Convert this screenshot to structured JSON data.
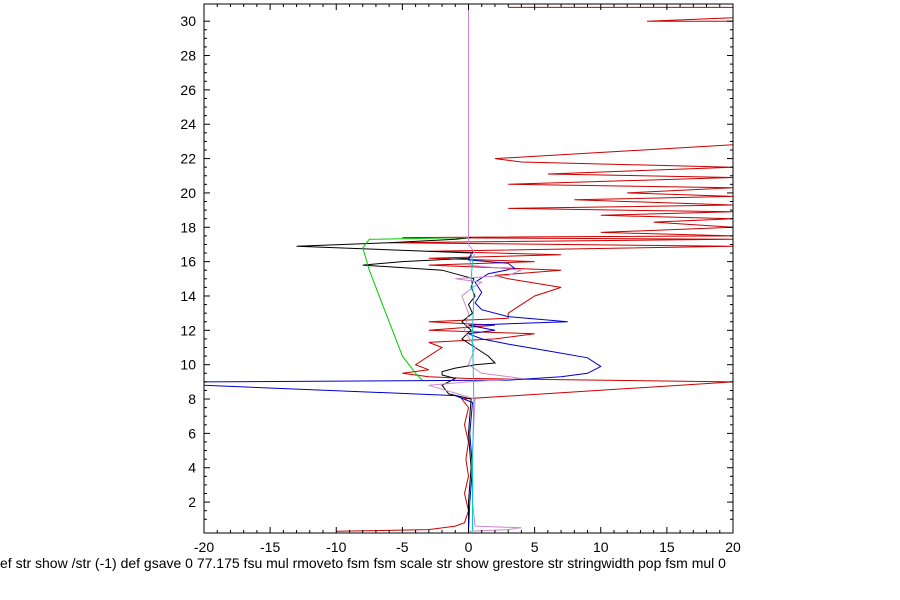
{
  "chart_data": {
    "type": "line",
    "title": "",
    "xlabel": "",
    "ylabel": "",
    "xlim": [
      -20,
      20
    ],
    "ylim": [
      0.2,
      31
    ],
    "grid": false,
    "legend": "none",
    "xticks": [
      -20,
      -15,
      -10,
      -5,
      0,
      5,
      10,
      15,
      20
    ],
    "yticks": [
      2,
      4,
      6,
      8,
      10,
      12,
      14,
      16,
      18,
      20,
      22,
      24,
      26,
      28,
      30
    ],
    "caption": "ef str show /str (-1) def gsave 0 77.175 fsu mul rmoveto fsm fsm scale str show grestore str stringwidth pop fsm mul 0",
    "series": [
      {
        "color": "#cc0000",
        "points": [
          [
            -10,
            0.3
          ],
          [
            -3,
            0.4
          ],
          [
            -1,
            0.6
          ],
          [
            -0.3,
            0.8
          ],
          [
            0,
            1.5
          ],
          [
            -0.3,
            2.5
          ],
          [
            0,
            3.5
          ],
          [
            -0.2,
            4.5
          ],
          [
            0,
            5.5
          ],
          [
            -0.3,
            6.5
          ],
          [
            0,
            7.5
          ],
          [
            -0.5,
            8
          ],
          [
            20,
            9
          ],
          [
            -0.2,
            9.2
          ],
          [
            -3,
            9.3
          ],
          [
            -5,
            9.5
          ],
          [
            -3,
            9.7
          ],
          [
            -4,
            10
          ],
          [
            -3,
            10.5
          ],
          [
            -2,
            11
          ],
          [
            -3,
            11.3
          ],
          [
            2,
            11.5
          ],
          [
            5,
            11.8
          ],
          [
            -3,
            12
          ],
          [
            2,
            12.3
          ],
          [
            -3,
            12.5
          ],
          [
            3,
            12.7
          ],
          [
            3,
            13
          ],
          [
            4,
            13.5
          ],
          [
            5,
            14
          ],
          [
            7,
            14.5
          ],
          [
            3,
            15
          ],
          [
            2,
            15.2
          ],
          [
            7,
            15.5
          ],
          [
            -3,
            15.8
          ],
          [
            5,
            16
          ],
          [
            -3,
            16.2
          ],
          [
            7,
            16.4
          ],
          [
            -3,
            16.6
          ],
          [
            20,
            16.9
          ],
          [
            -6,
            17.1
          ],
          [
            20,
            17.3
          ],
          [
            -5,
            17.4
          ],
          [
            20,
            17.5
          ],
          [
            10,
            17.7
          ],
          [
            20,
            18
          ],
          [
            14,
            18.3
          ],
          [
            20,
            18.5
          ],
          [
            10,
            18.7
          ],
          [
            20,
            18.9
          ],
          [
            3,
            19.1
          ],
          [
            20,
            19.3
          ],
          [
            8,
            19.6
          ],
          [
            20,
            19.8
          ],
          [
            12,
            20
          ],
          [
            20,
            20.3
          ],
          [
            3,
            20.5
          ],
          [
            20,
            20.9
          ],
          [
            6,
            21.1
          ],
          [
            20,
            21.5
          ],
          [
            4,
            21.8
          ],
          [
            2,
            22
          ],
          [
            20,
            22.8
          ],
          [
            20,
            30
          ],
          [
            13.5,
            30
          ],
          [
            20,
            30.2
          ],
          [
            20,
            30.8
          ],
          [
            3,
            30.8
          ]
        ]
      },
      {
        "color": "#000000",
        "points": [
          [
            0,
            0.3
          ],
          [
            0,
            2
          ],
          [
            0.2,
            4
          ],
          [
            0,
            6
          ],
          [
            0.2,
            8
          ],
          [
            -1.5,
            8.3
          ],
          [
            -2,
            8.8
          ],
          [
            -1,
            9.2
          ],
          [
            -2,
            9.4
          ],
          [
            -2,
            9.6
          ],
          [
            -1,
            9.8
          ],
          [
            0.5,
            10
          ],
          [
            2,
            10.1
          ],
          [
            1.5,
            10.5
          ],
          [
            0.5,
            11
          ],
          [
            -0.5,
            11.5
          ],
          [
            0.2,
            12
          ],
          [
            -0.5,
            12.5
          ],
          [
            0.3,
            13
          ],
          [
            0,
            13.5
          ],
          [
            0.5,
            14
          ],
          [
            0.2,
            14.5
          ],
          [
            0.4,
            15
          ],
          [
            -2,
            15.5
          ],
          [
            -8,
            15.8
          ],
          [
            -5,
            16
          ],
          [
            0,
            16.2
          ],
          [
            0.3,
            16.5
          ],
          [
            -13,
            16.9
          ],
          [
            -6,
            17.1
          ],
          [
            -1,
            17.3
          ],
          [
            0.2,
            17.4
          ]
        ]
      },
      {
        "color": "#0000cc",
        "points": [
          [
            0,
            0.3
          ],
          [
            0.1,
            2
          ],
          [
            0.3,
            4
          ],
          [
            0.1,
            6
          ],
          [
            0.3,
            7.8
          ],
          [
            -1,
            8.2
          ],
          [
            -20,
            8.8
          ],
          [
            -20,
            9
          ],
          [
            3,
            9.1
          ],
          [
            7,
            9.3
          ],
          [
            9,
            9.5
          ],
          [
            10,
            9.9
          ],
          [
            9,
            10.4
          ],
          [
            6,
            10.8
          ],
          [
            3,
            11.2
          ],
          [
            1,
            11.5
          ],
          [
            0,
            11.8
          ],
          [
            2,
            12
          ],
          [
            0,
            12.3
          ],
          [
            7.5,
            12.5
          ],
          [
            3,
            12.8
          ],
          [
            1,
            13.2
          ],
          [
            0.5,
            13.6
          ],
          [
            1,
            14.2
          ],
          [
            0.5,
            14.8
          ],
          [
            1.5,
            15.3
          ],
          [
            3.5,
            15.6
          ],
          [
            3,
            15.9
          ],
          [
            0,
            16.1
          ],
          [
            0.3,
            16.6
          ]
        ]
      },
      {
        "color": "#00cc00",
        "points": [
          [
            -3.5,
            9.1
          ],
          [
            -4,
            9.5
          ],
          [
            -4.5,
            10
          ],
          [
            -5,
            10.5
          ],
          [
            -5.5,
            11.5
          ],
          [
            -6,
            12.5
          ],
          [
            -6.5,
            13.5
          ],
          [
            -7,
            14.5
          ],
          [
            -7.5,
            15.5
          ],
          [
            -7.8,
            16.3
          ],
          [
            -8,
            16.8
          ],
          [
            -7.5,
            17.3
          ],
          [
            0,
            17.4
          ]
        ]
      },
      {
        "color": "#cc88cc",
        "points": [
          [
            0,
            0.3
          ],
          [
            3,
            0.4
          ],
          [
            4,
            0.5
          ],
          [
            0.5,
            0.6
          ],
          [
            0.3,
            2
          ],
          [
            0.3,
            5
          ],
          [
            0.5,
            8
          ],
          [
            -3,
            8.8
          ],
          [
            0,
            9
          ],
          [
            4,
            9.2
          ],
          [
            1,
            9.5
          ],
          [
            0,
            10
          ],
          [
            0.5,
            11
          ],
          [
            -0.3,
            12
          ],
          [
            0,
            13
          ],
          [
            -0.5,
            14
          ],
          [
            0.3,
            14.5
          ],
          [
            1,
            14.8
          ],
          [
            -1,
            15
          ],
          [
            3,
            15.2
          ],
          [
            4,
            15.5
          ],
          [
            0,
            15.8
          ],
          [
            0.5,
            16.5
          ],
          [
            0,
            17
          ],
          [
            0,
            31
          ]
        ]
      },
      {
        "color": "#00cccc",
        "points": [
          [
            0.3,
            0.3
          ],
          [
            0.3,
            4
          ],
          [
            0.4,
            8
          ],
          [
            0.3,
            12
          ],
          [
            0.4,
            14
          ],
          [
            0.2,
            15
          ],
          [
            0.3,
            16
          ],
          [
            0.2,
            16.5
          ]
        ]
      }
    ]
  }
}
